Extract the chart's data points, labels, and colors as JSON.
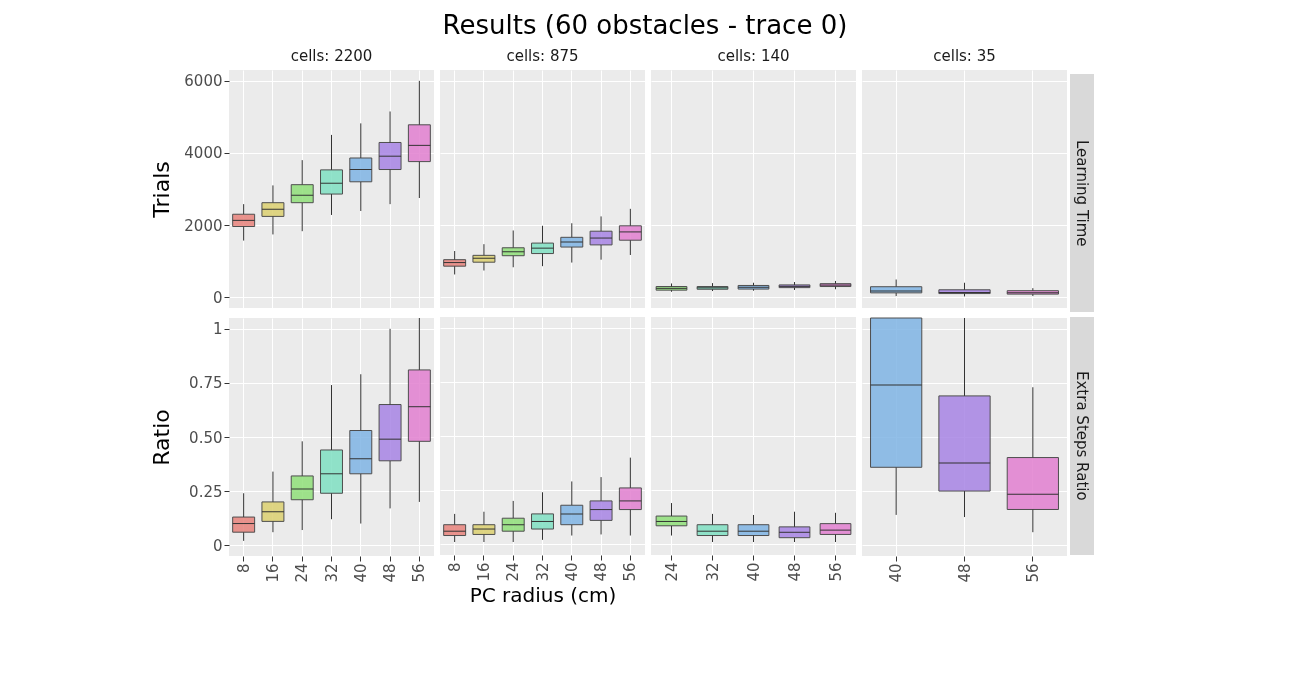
{
  "chart_data": [
    {
      "type": "box",
      "title": "cells: 2200",
      "ylabel": "Trials",
      "annotations": [
        "Results (60 obstacles - trace 0)"
      ],
      "categories": [
        "8",
        "16",
        "24",
        "32",
        "40",
        "48",
        "56"
      ],
      "colors": [
        "#e8837c",
        "#dcd070",
        "#90e07a",
        "#7fe0c2",
        "#80b4e4",
        "#a784e4",
        "#e27fd0"
      ],
      "boxes": [
        {
          "low": 1570,
          "q1": 1960,
          "median": 2130,
          "q3": 2300,
          "high": 2580
        },
        {
          "low": 1740,
          "q1": 2240,
          "median": 2440,
          "q3": 2620,
          "high": 3100
        },
        {
          "low": 1830,
          "q1": 2620,
          "median": 2830,
          "q3": 3120,
          "high": 3800
        },
        {
          "low": 2280,
          "q1": 2860,
          "median": 3160,
          "q3": 3530,
          "high": 4500
        },
        {
          "low": 2390,
          "q1": 3200,
          "median": 3540,
          "q3": 3860,
          "high": 4820
        },
        {
          "low": 2580,
          "q1": 3540,
          "median": 3910,
          "q3": 4290,
          "high": 5150
        },
        {
          "low": 2750,
          "q1": 3760,
          "median": 4210,
          "q3": 4780,
          "high": 6000
        }
      ],
      "ylim": [
        -300,
        6300
      ],
      "yticks": [
        0,
        2000,
        4000,
        6000
      ],
      "grid": true,
      "tick_labels": "y"
    },
    {
      "type": "box",
      "title": "cells: 875",
      "categories": [
        "8",
        "16",
        "24",
        "32",
        "40",
        "48",
        "56"
      ],
      "colors": [
        "#e8837c",
        "#dcd070",
        "#90e07a",
        "#7fe0c2",
        "#80b4e4",
        "#a784e4",
        "#e27fd0"
      ],
      "boxes": [
        {
          "low": 630,
          "q1": 860,
          "median": 960,
          "q3": 1040,
          "high": 1280
        },
        {
          "low": 740,
          "q1": 970,
          "median": 1080,
          "q3": 1160,
          "high": 1470
        },
        {
          "low": 830,
          "q1": 1150,
          "median": 1260,
          "q3": 1370,
          "high": 1850
        },
        {
          "low": 860,
          "q1": 1210,
          "median": 1360,
          "q3": 1500,
          "high": 1980
        },
        {
          "low": 960,
          "q1": 1390,
          "median": 1530,
          "q3": 1660,
          "high": 2050
        },
        {
          "low": 1040,
          "q1": 1450,
          "median": 1640,
          "q3": 1830,
          "high": 2240
        },
        {
          "low": 1170,
          "q1": 1580,
          "median": 1810,
          "q3": 1980,
          "high": 2450
        }
      ],
      "ylim": [
        -300,
        6300
      ],
      "yticks": [
        0,
        2000,
        4000,
        6000
      ],
      "grid": true,
      "tick_labels": false
    },
    {
      "type": "box",
      "title": "cells: 140",
      "categories": [
        "24",
        "32",
        "40",
        "48",
        "56"
      ],
      "colors": [
        "#90e07a",
        "#7fe0c2",
        "#80b4e4",
        "#a784e4",
        "#e27fd0"
      ],
      "boxes": [
        {
          "low": 150,
          "q1": 195,
          "median": 245,
          "q3": 295,
          "high": 380
        },
        {
          "low": 170,
          "q1": 220,
          "median": 260,
          "q3": 295,
          "high": 390
        },
        {
          "low": 180,
          "q1": 225,
          "median": 275,
          "q3": 325,
          "high": 400
        },
        {
          "low": 200,
          "q1": 265,
          "median": 300,
          "q3": 340,
          "high": 420
        },
        {
          "low": 220,
          "q1": 295,
          "median": 335,
          "q3": 375,
          "high": 450
        }
      ],
      "ylim": [
        -300,
        6300
      ],
      "yticks": [
        0,
        2000,
        4000,
        6000
      ],
      "grid": true,
      "tick_labels": false
    },
    {
      "type": "box",
      "title": "cells: 35",
      "y2label": "Learning Time",
      "categories": [
        "40",
        "48",
        "56"
      ],
      "colors": [
        "#80b4e4",
        "#a784e4",
        "#e27fd0"
      ],
      "boxes": [
        {
          "low": 30,
          "q1": 120,
          "median": 170,
          "q3": 290,
          "high": 490
        },
        {
          "low": 20,
          "q1": 100,
          "median": 130,
          "q3": 205,
          "high": 400
        },
        {
          "low": 30,
          "q1": 85,
          "median": 120,
          "q3": 180,
          "high": 250
        }
      ],
      "ylim": [
        -300,
        6300
      ],
      "yticks": [
        0,
        2000,
        4000,
        6000
      ],
      "grid": true,
      "tick_labels": false
    },
    {
      "type": "box",
      "ylabel": "Ratio",
      "categories": [
        "8",
        "16",
        "24",
        "32",
        "40",
        "48",
        "56"
      ],
      "colors": [
        "#e8837c",
        "#dcd070",
        "#90e07a",
        "#7fe0c2",
        "#80b4e4",
        "#a784e4",
        "#e27fd0"
      ],
      "boxes": [
        {
          "low": 0.02,
          "q1": 0.06,
          "median": 0.1,
          "q3": 0.13,
          "high": 0.24
        },
        {
          "low": 0.06,
          "q1": 0.11,
          "median": 0.155,
          "q3": 0.2,
          "high": 0.34
        },
        {
          "low": 0.07,
          "q1": 0.21,
          "median": 0.26,
          "q3": 0.32,
          "high": 0.48
        },
        {
          "low": 0.12,
          "q1": 0.24,
          "median": 0.33,
          "q3": 0.44,
          "high": 0.74
        },
        {
          "low": 0.1,
          "q1": 0.33,
          "median": 0.4,
          "q3": 0.53,
          "high": 0.79
        },
        {
          "low": 0.17,
          "q1": 0.39,
          "median": 0.49,
          "q3": 0.65,
          "high": 1.0
        },
        {
          "low": 0.2,
          "q1": 0.48,
          "median": 0.64,
          "q3": 0.81,
          "high": 1.05
        }
      ],
      "ylim": [
        -0.05,
        1.05
      ],
      "yticks": [
        0,
        0.25,
        {
          "value": 0.5,
          "label": "0.50"
        },
        0.75,
        1
      ],
      "grid": true
    },
    {
      "type": "box",
      "xlabel": "PC radius (cm)",
      "categories": [
        "8",
        "16",
        "24",
        "32",
        "40",
        "48",
        "56"
      ],
      "colors": [
        "#e8837c",
        "#dcd070",
        "#90e07a",
        "#7fe0c2",
        "#80b4e4",
        "#a784e4",
        "#e27fd0"
      ],
      "boxes": [
        {
          "low": 0.01,
          "q1": 0.04,
          "median": 0.06,
          "q3": 0.09,
          "high": 0.14
        },
        {
          "low": 0.01,
          "q1": 0.045,
          "median": 0.07,
          "q3": 0.09,
          "high": 0.15
        },
        {
          "low": 0.01,
          "q1": 0.06,
          "median": 0.09,
          "q3": 0.12,
          "high": 0.2
        },
        {
          "low": 0.02,
          "q1": 0.07,
          "median": 0.105,
          "q3": 0.14,
          "high": 0.24
        },
        {
          "low": 0.04,
          "q1": 0.09,
          "median": 0.14,
          "q3": 0.18,
          "high": 0.29
        },
        {
          "low": 0.045,
          "q1": 0.11,
          "median": 0.16,
          "q3": 0.2,
          "high": 0.31
        },
        {
          "low": 0.04,
          "q1": 0.16,
          "median": 0.2,
          "q3": 0.26,
          "high": 0.4
        }
      ],
      "ylim": [
        -0.05,
        1.05
      ],
      "yticks": [
        0,
        0.25,
        0.5,
        0.75,
        1
      ],
      "grid": true,
      "tick_labels": "x"
    },
    {
      "type": "box",
      "categories": [
        "24",
        "32",
        "40",
        "48",
        "56"
      ],
      "colors": [
        "#90e07a",
        "#7fe0c2",
        "#80b4e4",
        "#a784e4",
        "#e27fd0"
      ],
      "boxes": [
        {
          "low": 0.04,
          "q1": 0.085,
          "median": 0.105,
          "q3": 0.13,
          "high": 0.19
        },
        {
          "low": 0.01,
          "q1": 0.04,
          "median": 0.06,
          "q3": 0.09,
          "high": 0.14
        },
        {
          "low": 0.01,
          "q1": 0.04,
          "median": 0.06,
          "q3": 0.09,
          "high": 0.135
        },
        {
          "low": 0.01,
          "q1": 0.03,
          "median": 0.055,
          "q3": 0.08,
          "high": 0.15
        },
        {
          "low": 0.01,
          "q1": 0.045,
          "median": 0.065,
          "q3": 0.095,
          "high": 0.145
        }
      ],
      "ylim": [
        -0.05,
        1.05
      ],
      "yticks": [
        0,
        0.25,
        0.5,
        0.75,
        1
      ],
      "grid": true,
      "tick_labels": "x"
    },
    {
      "type": "box",
      "y2label": "Extra Steps Ratio",
      "categories": [
        "40",
        "48",
        "56"
      ],
      "colors": [
        "#80b4e4",
        "#a784e4",
        "#e27fd0"
      ],
      "boxes": [
        {
          "low": 0.14,
          "q1": 0.36,
          "median": 0.74,
          "q3": 1.05,
          "high": 1.05
        },
        {
          "low": 0.13,
          "q1": 0.25,
          "median": 0.38,
          "q3": 0.69,
          "high": 1.05
        },
        {
          "low": 0.06,
          "q1": 0.165,
          "median": 0.235,
          "q3": 0.405,
          "high": 0.73
        }
      ],
      "ylim": [
        -0.05,
        1.05
      ],
      "yticks": [
        0,
        0.25,
        0.5,
        0.75,
        1
      ],
      "grid": true,
      "tick_labels": "x"
    }
  ]
}
